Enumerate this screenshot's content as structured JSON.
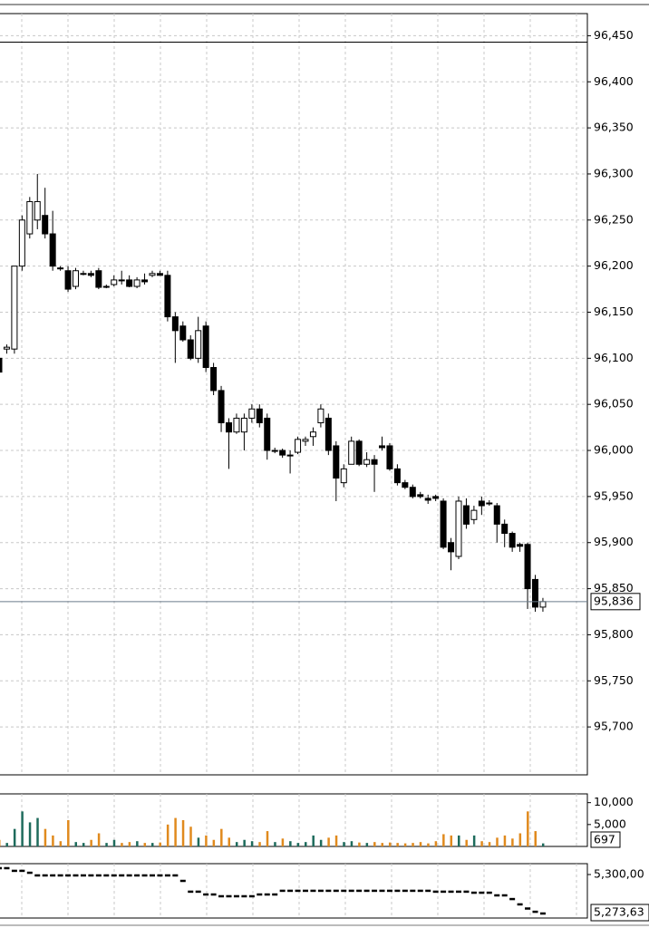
{
  "chart_data": [
    {
      "type": "candlestick",
      "up_color": "#ffffff",
      "down_color": "#000000",
      "grid": true,
      "ylim": [
        95648,
        96474
      ],
      "yticks": [
        {
          "value": 95700,
          "label": "95,700"
        },
        {
          "value": 95750,
          "label": "95,750"
        },
        {
          "value": 95800,
          "label": "95,800"
        },
        {
          "value": 95850,
          "label": "95,850"
        },
        {
          "value": 95900,
          "label": "95,900"
        },
        {
          "value": 95950,
          "label": "95,950"
        },
        {
          "value": 96000,
          "label": "96,000"
        },
        {
          "value": 96050,
          "label": "96,050"
        },
        {
          "value": 96100,
          "label": "96,100"
        },
        {
          "value": 96150,
          "label": "96,150"
        },
        {
          "value": 96200,
          "label": "96,200"
        },
        {
          "value": 96250,
          "label": "96,250"
        },
        {
          "value": 96300,
          "label": "96,300"
        },
        {
          "value": 96350,
          "label": "96,350"
        },
        {
          "value": 96400,
          "label": "96,400"
        },
        {
          "value": 96450,
          "label": "96,450"
        }
      ],
      "high_line": 96443,
      "last_value_label": "95,836",
      "open": [
        96100,
        96110,
        96110,
        96200,
        96235,
        96250,
        96255,
        96235,
        96198,
        96195,
        96178,
        96192,
        96192,
        96195,
        96178,
        96180,
        96185,
        96185,
        96178,
        96185,
        96190,
        96192,
        96190,
        96145,
        96135,
        96120,
        96100,
        96135,
        96090,
        96065,
        96030,
        96020,
        96020,
        96035,
        96045,
        96035,
        96000,
        96000,
        95995,
        95998,
        96010,
        96015,
        96030,
        96035,
        96005,
        95965,
        95985,
        96010,
        95985,
        95990,
        96005,
        96005,
        95980,
        95965,
        95960,
        95952,
        95948,
        95950,
        95945,
        95900,
        95885,
        95940,
        95925,
        95945,
        95943,
        95940,
        95920,
        95910,
        95898,
        95898,
        95860,
        95830
      ],
      "high": [
        96110,
        96115,
        96200,
        96255,
        96275,
        96300,
        96285,
        96260,
        96200,
        96200,
        96198,
        96195,
        96195,
        96198,
        96180,
        96190,
        96195,
        96190,
        96188,
        96192,
        96195,
        96195,
        96195,
        96150,
        96140,
        96125,
        96145,
        96140,
        96095,
        96070,
        96035,
        96040,
        96040,
        96050,
        96050,
        96040,
        96003,
        96002,
        96000,
        96015,
        96015,
        96025,
        96050,
        96040,
        96010,
        95985,
        96015,
        96012,
        95998,
        95995,
        96015,
        96008,
        95985,
        95968,
        95963,
        95955,
        95952,
        95952,
        95948,
        95905,
        95950,
        95948,
        95940,
        95950,
        95946,
        95943,
        95925,
        95912,
        95900,
        95900,
        95865,
        95840
      ],
      "low": [
        96070,
        96105,
        96105,
        96195,
        96230,
        96240,
        96230,
        96195,
        96195,
        96172,
        96175,
        96190,
        96188,
        96175,
        96176,
        96178,
        96180,
        96177,
        96176,
        96180,
        96188,
        96190,
        96140,
        96095,
        96118,
        96098,
        96095,
        96085,
        96060,
        96020,
        95980,
        96018,
        96000,
        96030,
        96025,
        95990,
        95997,
        95992,
        95975,
        95996,
        96005,
        96005,
        96025,
        95995,
        95945,
        95960,
        95985,
        95983,
        95982,
        95955,
        96000,
        95978,
        95962,
        95958,
        95948,
        95948,
        95942,
        95945,
        95893,
        95870,
        95882,
        95915,
        95920,
        95930,
        95940,
        95900,
        95895,
        95890,
        95890,
        95828,
        95825,
        95825
      ],
      "close": [
        96085,
        96112,
        96200,
        96250,
        96270,
        96270,
        96235,
        96200,
        96197,
        96175,
        96195,
        96192,
        96190,
        96177,
        96178,
        96185,
        96184,
        96178,
        96185,
        96183,
        96192,
        96190,
        96145,
        96130,
        96120,
        96100,
        96130,
        96090,
        96065,
        96030,
        96020,
        96035,
        96035,
        96045,
        96030,
        96000,
        96000,
        95995,
        95995,
        96012,
        96012,
        96020,
        96045,
        96000,
        95970,
        95980,
        96010,
        95985,
        95990,
        95985,
        96003,
        95980,
        95965,
        95960,
        95950,
        95950,
        95946,
        95948,
        95895,
        95890,
        95945,
        95920,
        95935,
        95940,
        95942,
        95920,
        95910,
        95895,
        95896,
        95850,
        95830,
        95836
      ]
    },
    {
      "type": "volume",
      "up_color": "#1e6b5c",
      "down_color": "#e08a1e",
      "ylim": [
        0,
        12000
      ],
      "yticks": [
        {
          "value": 5000,
          "label": "5,000"
        },
        {
          "value": 10000,
          "label": "10,000"
        }
      ],
      "values": [
        1500,
        800,
        4000,
        8000,
        5500,
        6500,
        4000,
        2500,
        1200,
        6000,
        1000,
        800,
        1500,
        3000,
        800,
        1500,
        800,
        1000,
        1200,
        800,
        800,
        900,
        5000,
        6500,
        6000,
        4500,
        2000,
        2500,
        1500,
        4000,
        2000,
        1000,
        1500,
        1200,
        1000,
        3500,
        1000,
        1800,
        1200,
        800,
        1000,
        2500,
        1500,
        2000,
        2500,
        1000,
        1200,
        900,
        800,
        1000,
        800,
        900,
        800,
        700,
        800,
        1000,
        700,
        1200,
        2800,
        2500,
        2500,
        1500,
        2500,
        1200,
        1000,
        2000,
        2500,
        1800,
        3000,
        8000,
        3500,
        697
      ]
    },
    {
      "type": "step-line",
      "color": "#000000",
      "ylim": [
        5270565,
        5307360
      ],
      "yticks": [
        {
          "value": 5300000,
          "label": "5,300,00"
        }
      ],
      "last_value_label": "5,273,63",
      "values": [
        5304300,
        5304300,
        5302500,
        5302500,
        5301200,
        5299400,
        5299400,
        5299400,
        5299400,
        5299400,
        5299400,
        5299400,
        5299400,
        5299400,
        5299400,
        5299400,
        5299400,
        5299400,
        5299400,
        5299400,
        5299400,
        5299400,
        5299400,
        5299400,
        5295700,
        5288400,
        5288400,
        5286500,
        5286500,
        5285300,
        5285300,
        5285300,
        5285300,
        5285300,
        5286500,
        5286500,
        5286500,
        5289000,
        5289000,
        5289000,
        5289000,
        5289000,
        5289000,
        5289000,
        5289000,
        5289000,
        5289000,
        5289000,
        5289000,
        5289000,
        5289000,
        5289000,
        5289000,
        5289000,
        5289000,
        5289000,
        5289000,
        5288400,
        5288400,
        5288400,
        5288400,
        5288400,
        5287700,
        5287700,
        5287700,
        5285900,
        5285900,
        5283400,
        5279800,
        5277000,
        5274800,
        5273630
      ]
    }
  ]
}
